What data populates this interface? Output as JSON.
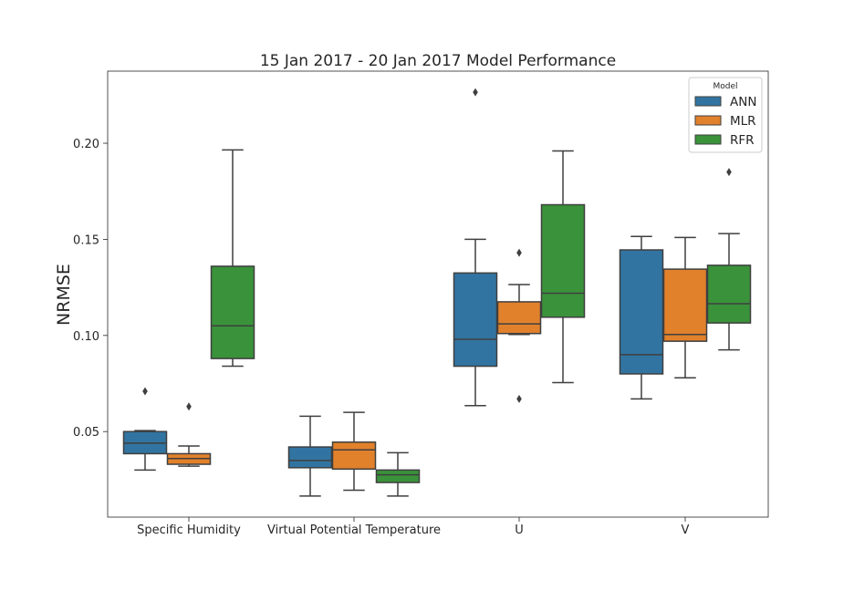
{
  "chart_data": {
    "type": "box",
    "title": "15 Jan 2017 - 20 Jan 2017 Model Performance",
    "xlabel": "",
    "ylabel": "NRMSE",
    "ylim": [
      0.0055,
      0.2375
    ],
    "yticks": [
      "0.05",
      "0.10",
      "0.15",
      "0.20"
    ],
    "ytick_values": [
      0.05,
      0.1,
      0.15,
      0.2
    ],
    "categories": [
      "Specific Humidity",
      "Virtual Potential Temperature",
      "U",
      "V"
    ],
    "grid": false,
    "legend": {
      "title": "Model",
      "position": "top-right"
    },
    "series": [
      {
        "name": "ANN",
        "color": "#3274a1",
        "boxes": [
          {
            "whislo": 0.03,
            "q1": 0.0385,
            "med": 0.044,
            "q3": 0.05,
            "whishi": 0.0505,
            "fliers": [
              0.071
            ]
          },
          {
            "whislo": 0.0165,
            "q1": 0.0312,
            "med": 0.035,
            "q3": 0.042,
            "whishi": 0.058,
            "fliers": []
          },
          {
            "whislo": 0.0635,
            "q1": 0.084,
            "med": 0.098,
            "q3": 0.1325,
            "whishi": 0.15,
            "fliers": [
              0.2265
            ]
          },
          {
            "whislo": 0.067,
            "q1": 0.08,
            "med": 0.09,
            "q3": 0.1445,
            "whishi": 0.1515,
            "fliers": []
          }
        ]
      },
      {
        "name": "MLR",
        "color": "#e1812c",
        "boxes": [
          {
            "whislo": 0.032,
            "q1": 0.033,
            "med": 0.036,
            "q3": 0.0385,
            "whishi": 0.0425,
            "fliers": [
              0.063
            ]
          },
          {
            "whislo": 0.0195,
            "q1": 0.0305,
            "med": 0.0405,
            "q3": 0.0445,
            "whishi": 0.06,
            "fliers": []
          },
          {
            "whislo": 0.1005,
            "q1": 0.101,
            "med": 0.106,
            "q3": 0.1175,
            "whishi": 0.1265,
            "fliers": [
              0.143,
              0.067
            ]
          },
          {
            "whislo": 0.078,
            "q1": 0.097,
            "med": 0.1005,
            "q3": 0.1345,
            "whishi": 0.151,
            "fliers": []
          }
        ]
      },
      {
        "name": "RFR",
        "color": "#3a923a",
        "boxes": [
          {
            "whislo": 0.084,
            "q1": 0.088,
            "med": 0.105,
            "q3": 0.136,
            "whishi": 0.1965,
            "fliers": []
          },
          {
            "whislo": 0.0165,
            "q1": 0.0235,
            "med": 0.0275,
            "q3": 0.03,
            "whishi": 0.039,
            "fliers": []
          },
          {
            "whislo": 0.0755,
            "q1": 0.1095,
            "med": 0.122,
            "q3": 0.168,
            "whishi": 0.196,
            "fliers": []
          },
          {
            "whislo": 0.0925,
            "q1": 0.1065,
            "med": 0.1165,
            "q3": 0.1365,
            "whishi": 0.153,
            "fliers": [
              0.185
            ]
          }
        ]
      }
    ]
  }
}
